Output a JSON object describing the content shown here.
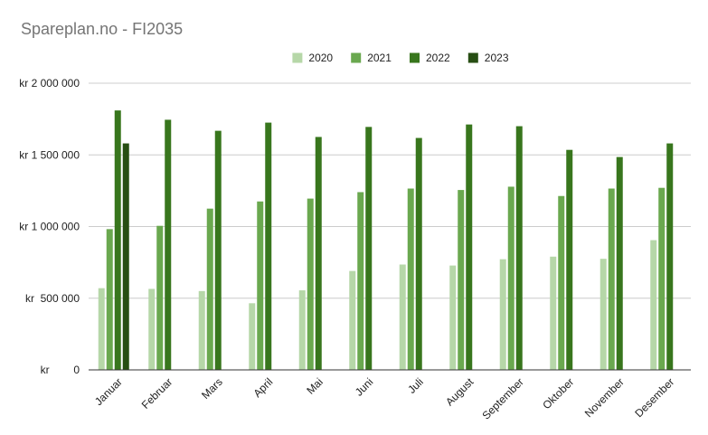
{
  "chart_data": {
    "type": "bar",
    "title": "Spareplan.no - FI2035",
    "xlabel": "",
    "ylabel": "",
    "ylim": [
      0,
      2000000
    ],
    "y_ticks": [
      {
        "value": 0,
        "label": "kr        0"
      },
      {
        "value": 500000,
        "label": "kr  500 000"
      },
      {
        "value": 1000000,
        "label": "kr 1 000 000"
      },
      {
        "value": 1500000,
        "label": "kr 1 500 000"
      },
      {
        "value": 2000000,
        "label": "kr 2 000 000"
      }
    ],
    "grid": true,
    "legend_position": "top",
    "categories": [
      "Januar",
      "Februar",
      "Mars",
      "April",
      "Mai",
      "Juni",
      "Juli",
      "August",
      "September",
      "Oktober",
      "November",
      "Desember"
    ],
    "series": [
      {
        "name": "2020",
        "color": "#b6d7a8",
        "values": [
          570000,
          565000,
          550000,
          465000,
          555000,
          690000,
          735000,
          728000,
          772000,
          790000,
          775000,
          905000
        ]
      },
      {
        "name": "2021",
        "color": "#6aa84f",
        "values": [
          982000,
          1005000,
          1125000,
          1175000,
          1195000,
          1240000,
          1265000,
          1255000,
          1278000,
          1213000,
          1265000,
          1270000
        ]
      },
      {
        "name": "2022",
        "color": "#38761d",
        "values": [
          1810000,
          1745000,
          1668000,
          1725000,
          1625000,
          1695000,
          1618000,
          1712000,
          1700000,
          1535000,
          1485000,
          1580000
        ]
      },
      {
        "name": "2023",
        "color": "#274e13",
        "values": [
          1580000,
          null,
          null,
          null,
          null,
          null,
          null,
          null,
          null,
          null,
          null,
          null
        ]
      }
    ]
  }
}
